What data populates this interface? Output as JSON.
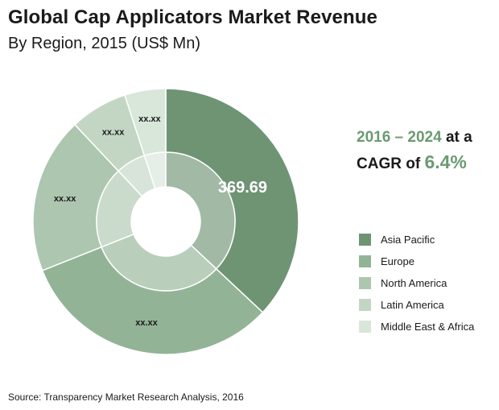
{
  "title": "Global Cap Applicators Market Revenue",
  "subtitle": "By Region, 2015 (US$ Mn)",
  "cagr": {
    "years": "2016 – 2024",
    "at_a": " at a",
    "cagr_of": "CAGR of ",
    "value": "6.4%"
  },
  "source": "Source: Transparency Market Research Analysis, 2016",
  "chart_data": {
    "type": "pie",
    "categories": [
      "Asia Pacific",
      "Europe",
      "North America",
      "Latin America",
      "Middle East & Africa"
    ],
    "values": [
      369.69,
      320,
      190,
      70,
      50
    ],
    "data_labels": [
      "369.69",
      "xx.xx",
      "xx.xx",
      "xx.xx",
      "xx.xx"
    ],
    "colors": [
      "#6e9474",
      "#93b396",
      "#adc6af",
      "#c3d6c4",
      "#d9e6da"
    ],
    "legend_position": "right"
  }
}
